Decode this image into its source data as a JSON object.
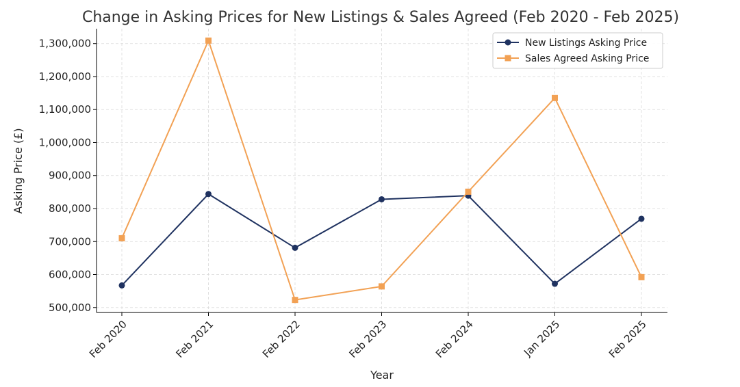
{
  "chart_data": {
    "type": "line",
    "title": "Change in Asking Prices for New Listings & Sales Agreed (Feb 2020 - Feb 2025)",
    "xlabel": "Year",
    "ylabel": "Asking Price (£)",
    "categories": [
      "Feb 2020",
      "Feb 2021",
      "Feb 2022",
      "Feb 2023",
      "Feb 2024",
      "Jan 2025",
      "Feb 2025"
    ],
    "ylim": [
      485000,
      1345000
    ],
    "yticks": [
      500000,
      600000,
      700000,
      800000,
      900000,
      1000000,
      1100000,
      1200000,
      1300000
    ],
    "ytick_labels": [
      "500,000",
      "600,000",
      "700,000",
      "800,000",
      "900,000",
      "1,000,000",
      "1,100,000",
      "1,200,000",
      "1,300,000"
    ],
    "grid": true,
    "legend_position": "top-right",
    "series": [
      {
        "name": "New Listings Asking Price",
        "color": "#1f3260",
        "marker": "circle",
        "values": [
          567000,
          844000,
          681000,
          828000,
          839000,
          572000,
          769000
        ]
      },
      {
        "name": "Sales Agreed Asking Price",
        "color": "#f2a154",
        "marker": "square",
        "values": [
          710000,
          1309000,
          523000,
          564000,
          851000,
          1135000,
          592000
        ]
      }
    ]
  }
}
